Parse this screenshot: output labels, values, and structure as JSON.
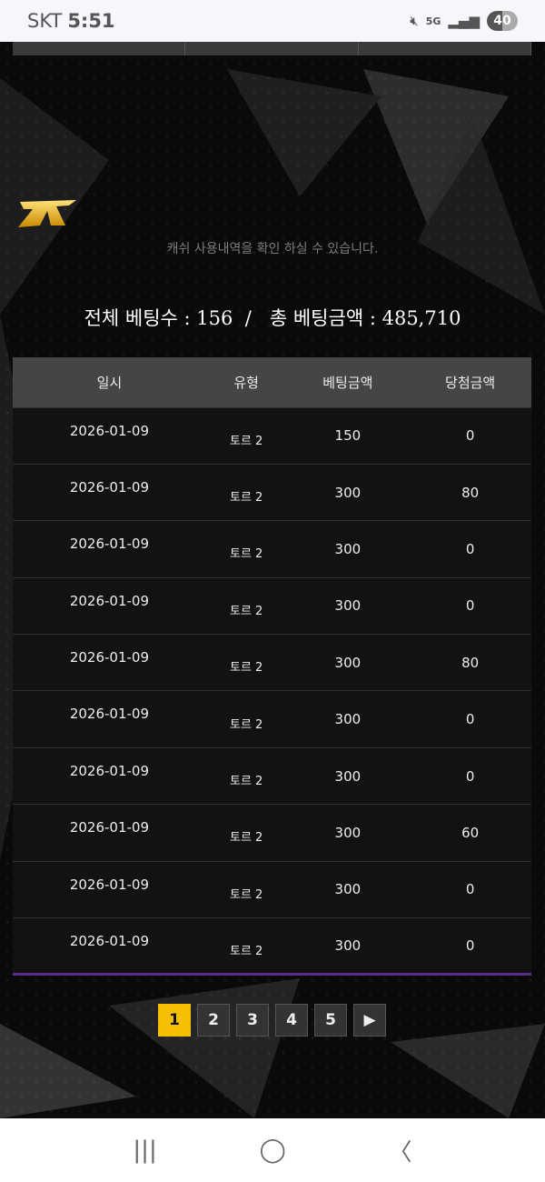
{
  "status_bar": {
    "carrier": "SKT",
    "time": "5:51",
    "network": "5G",
    "battery": "40"
  },
  "description": "캐쉬 사용내역을 확인 하실 수 있습니다.",
  "summary": {
    "total_bets_label": "전체 베팅수",
    "total_bets": "156",
    "separator": "/",
    "total_amount_label": "총 베팅금액",
    "total_amount": "485,710",
    "colon": ":"
  },
  "logo_text": "ZETA",
  "table": {
    "headers": [
      "일시",
      "유형",
      "베팅금액",
      "당첨금액"
    ],
    "rows": [
      [
        "2026-01-09",
        "토르 2",
        "150",
        "0"
      ],
      [
        "2026-01-09",
        "토르 2",
        "300",
        "80"
      ],
      [
        "2026-01-09",
        "토르 2",
        "300",
        "0"
      ],
      [
        "2026-01-09",
        "토르 2",
        "300",
        "0"
      ],
      [
        "2026-01-09",
        "토르 2",
        "300",
        "80"
      ],
      [
        "2026-01-09",
        "토르 2",
        "300",
        "0"
      ],
      [
        "2026-01-09",
        "토르 2",
        "300",
        "0"
      ],
      [
        "2026-01-09",
        "토르 2",
        "300",
        "60"
      ],
      [
        "2026-01-09",
        "토르 2",
        "300",
        "0"
      ],
      [
        "2026-01-09",
        "토르 2",
        "300",
        "0"
      ]
    ]
  },
  "pagination": {
    "pages": [
      "1",
      "2",
      "3",
      "4",
      "5"
    ],
    "current": "1",
    "next": "▶"
  },
  "nav": {
    "recent": "|||",
    "home": "◯",
    "back": "〈"
  },
  "colors": {
    "accent": "#f5c000",
    "row_bottom_border": "#5a2d8c"
  }
}
